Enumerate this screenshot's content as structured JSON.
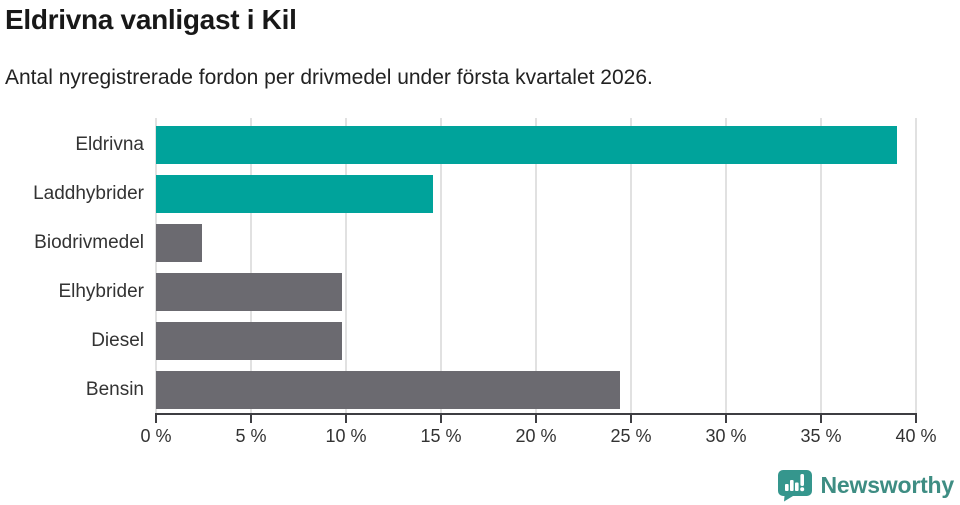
{
  "header": {
    "title": "Eldrivna vanligast i Kil",
    "subtitle": "Antal nyregistrerade fordon per drivmedel under första kvartalet 2026."
  },
  "chart_data": {
    "type": "bar",
    "orientation": "horizontal",
    "title": "Eldrivna vanligast i Kil",
    "subtitle": "Antal nyregistrerade fordon per drivmedel under första kvartalet 2026.",
    "categories": [
      "Eldrivna",
      "Laddhybrider",
      "Biodrivmedel",
      "Elhybrider",
      "Diesel",
      "Bensin"
    ],
    "values": [
      39.0,
      14.6,
      2.4,
      9.8,
      9.8,
      24.4
    ],
    "unit": "%",
    "bar_colors": [
      "#00a39b",
      "#00a39b",
      "#6b6a70",
      "#6b6a70",
      "#6b6a70",
      "#6b6a70"
    ],
    "xlabel": "",
    "ylabel": "",
    "xlim": [
      0,
      40
    ],
    "x_tick_values": [
      0,
      5,
      10,
      15,
      20,
      25,
      30,
      35,
      40
    ],
    "x_ticks": [
      "0 %",
      "5 %",
      "10 %",
      "15 %",
      "20 %",
      "25 %",
      "30 %",
      "35 %",
      "40 %"
    ],
    "grid": "vertical",
    "legend": "none"
  },
  "footer": {
    "brand": "Newsworthy",
    "brand_color": "#3e8d83",
    "icon": "newsworthy-bubble-chart-icon",
    "icon_color": "#35968d"
  },
  "colors": {
    "highlight_teal": "#00a39b",
    "neutral_gray": "#6b6a70",
    "axis": "#3e3e42",
    "gridline": "#e1e1e1",
    "title_text": "#181818",
    "subtitle_text": "#222222",
    "label_text": "#333333"
  }
}
